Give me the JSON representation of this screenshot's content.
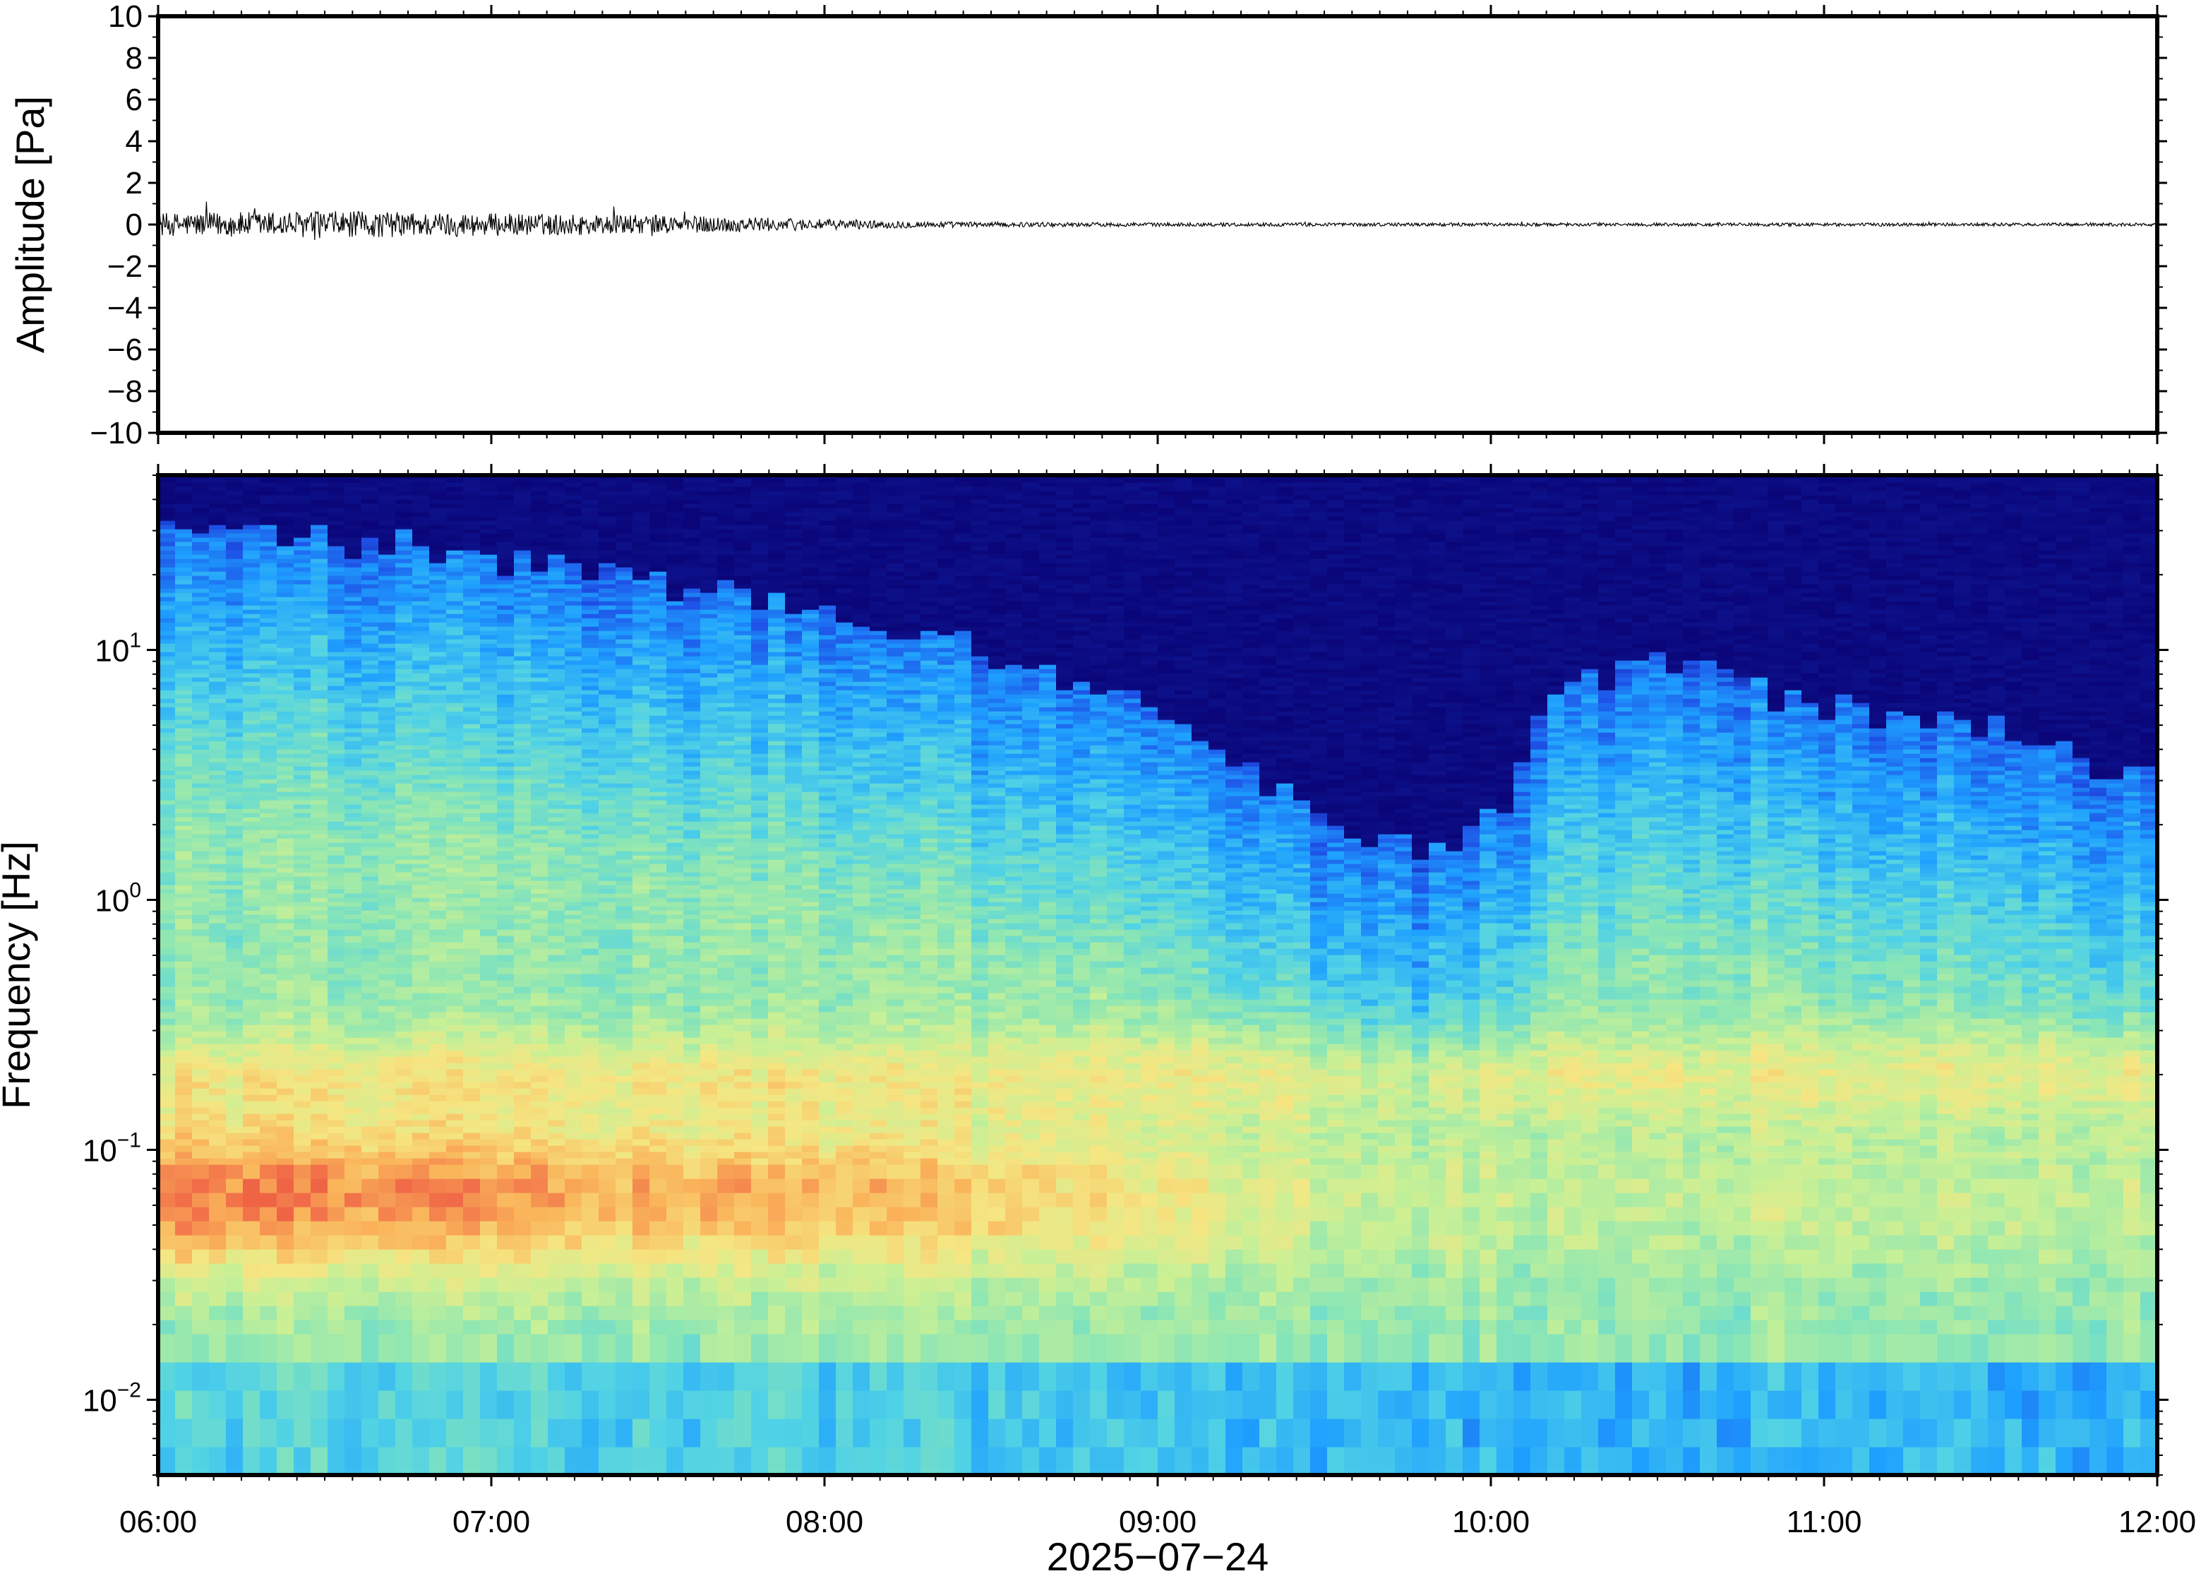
{
  "chart_data": [
    {
      "type": "line",
      "panel": "waveform",
      "ylabel": "Amplitude [Pa]",
      "ylim": [
        -10,
        10
      ],
      "yticks": [
        10,
        8,
        6,
        4,
        2,
        0,
        -2,
        -4,
        -6,
        -8,
        -10
      ],
      "ytick_labels": [
        "10",
        "8",
        "6",
        "4",
        "2",
        "0",
        "−2",
        "−4",
        "−6",
        "−8",
        "−10"
      ],
      "x_start": "06:00",
      "x_end": "12:00",
      "line_color": "#000000",
      "amplitude_envelope": {
        "times_h": [
          6.0,
          6.5,
          7.0,
          7.5,
          7.8,
          8.0,
          8.2,
          8.5,
          9.0,
          10.0,
          11.0,
          12.0
        ],
        "half_width_pa": [
          0.55,
          0.65,
          0.55,
          0.45,
          0.35,
          0.25,
          0.18,
          0.12,
          0.09,
          0.08,
          0.08,
          0.08
        ]
      },
      "grid": false
    },
    {
      "type": "heatmap",
      "panel": "spectrogram",
      "ylabel": "Frequency [Hz]",
      "yscale": "log",
      "ylim": [
        0.005,
        50
      ],
      "yticks": [
        {
          "base": "10",
          "exp": "1"
        },
        {
          "base": "10",
          "exp": "0"
        },
        {
          "base": "10",
          "exp": "−1"
        },
        {
          "base": "10",
          "exp": "−2"
        }
      ],
      "xlabel": "2025−07−24",
      "xticks": [
        "06:00",
        "07:00",
        "08:00",
        "09:00",
        "10:00",
        "11:00",
        "12:00"
      ],
      "colormap": "jet",
      "colormap_stops": [
        "#0a0578",
        "#1e50e6",
        "#1ea0ff",
        "#50d2e6",
        "#8ce6b4",
        "#c8f096",
        "#f5e682",
        "#fab45a",
        "#f06446"
      ],
      "upper_noise_edge_hz": {
        "times_h": [
          6.0,
          6.5,
          7.0,
          7.5,
          8.0,
          8.5,
          9.0,
          9.3,
          9.6,
          9.9,
          10.05,
          10.2,
          10.5,
          10.8,
          11.0,
          11.5,
          11.8,
          12.0
        ],
        "freq_hz": [
          30,
          28,
          24,
          19,
          14,
          10,
          6,
          3.0,
          1.8,
          1.5,
          2.5,
          7,
          9,
          7,
          6,
          5,
          3.5,
          3
        ]
      },
      "microseism_peak": {
        "freq_hz": [
          0.04,
          0.12
        ],
        "strongest_interval": [
          "06:00",
          "08:10"
        ],
        "peak_color": "#f05046"
      },
      "grid": false
    }
  ]
}
